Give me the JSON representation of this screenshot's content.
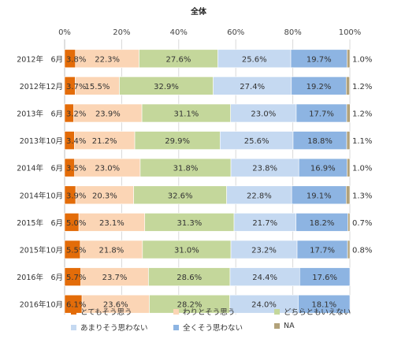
{
  "chart_data": {
    "type": "bar",
    "orientation": "horizontal",
    "stacked": true,
    "title": "全体",
    "x_tick_labels": [
      "0%",
      "20%",
      "40%",
      "60%",
      "80%",
      "100%"
    ],
    "xlim": [
      0,
      100
    ],
    "categories": [
      "2012年　6月",
      "2012年12月",
      "2013年　6月",
      "2013年10月",
      "2014年　6月",
      "2014年10月",
      "2015年　6月",
      "2015年10月",
      "2016年　6月",
      "2016年10月"
    ],
    "series": [
      {
        "name": "とてもそう思う",
        "color": "#e36c09",
        "values": [
          3.8,
          3.7,
          3.2,
          3.4,
          3.5,
          3.9,
          5.0,
          5.5,
          5.7,
          6.1
        ],
        "labels": [
          "3.8%",
          "3.7%",
          "3.2%",
          "3.4%",
          "3.5%",
          "3.9%",
          "5.0%",
          "5.5%",
          "5.7%",
          "6.1%"
        ]
      },
      {
        "name": "わりとそう思う",
        "color": "#fbd5b5",
        "values": [
          22.3,
          15.5,
          23.9,
          21.2,
          23.0,
          20.3,
          23.1,
          21.8,
          23.7,
          23.6
        ],
        "labels": [
          "22.3%",
          "15.5%",
          "23.9%",
          "21.2%",
          "23.0%",
          "20.3%",
          "23.1%",
          "21.8%",
          "23.7%",
          "23.6%"
        ]
      },
      {
        "name": "どちらともいえない",
        "color": "#c4d79b",
        "values": [
          27.6,
          32.9,
          31.1,
          29.9,
          31.8,
          32.6,
          31.3,
          31.0,
          28.6,
          28.2
        ],
        "labels": [
          "27.6%",
          "32.9%",
          "31.1%",
          "29.9%",
          "31.8%",
          "32.6%",
          "31.3%",
          "31.0%",
          "28.6%",
          "28.2%"
        ]
      },
      {
        "name": "あまりそう思わない",
        "color": "#c5d9f1",
        "values": [
          25.6,
          27.4,
          23.0,
          25.6,
          23.8,
          22.8,
          21.7,
          23.2,
          24.4,
          24.0
        ],
        "labels": [
          "25.6%",
          "27.4%",
          "23.0%",
          "25.6%",
          "23.8%",
          "22.8%",
          "21.7%",
          "23.2%",
          "24.4%",
          "24.0%"
        ]
      },
      {
        "name": "全くそう思わない",
        "color": "#8db4e2",
        "values": [
          19.7,
          19.2,
          17.7,
          18.8,
          16.9,
          19.1,
          18.2,
          17.7,
          17.6,
          18.1
        ],
        "labels": [
          "19.7%",
          "19.2%",
          "17.7%",
          "18.8%",
          "16.9%",
          "19.1%",
          "18.2%",
          "17.7%",
          "17.6%",
          "18.1%"
        ]
      },
      {
        "name": "NA",
        "color": "#b2a27a",
        "values": [
          1.0,
          1.2,
          1.2,
          1.1,
          1.0,
          1.3,
          0.7,
          0.8,
          0.0,
          0.0
        ],
        "labels": [
          "1.0%",
          "1.2%",
          "1.2%",
          "1.1%",
          "1.0%",
          "1.3%",
          "0.7%",
          "0.8%",
          "",
          ""
        ]
      }
    ],
    "legend_position": "bottom",
    "grid": true
  }
}
